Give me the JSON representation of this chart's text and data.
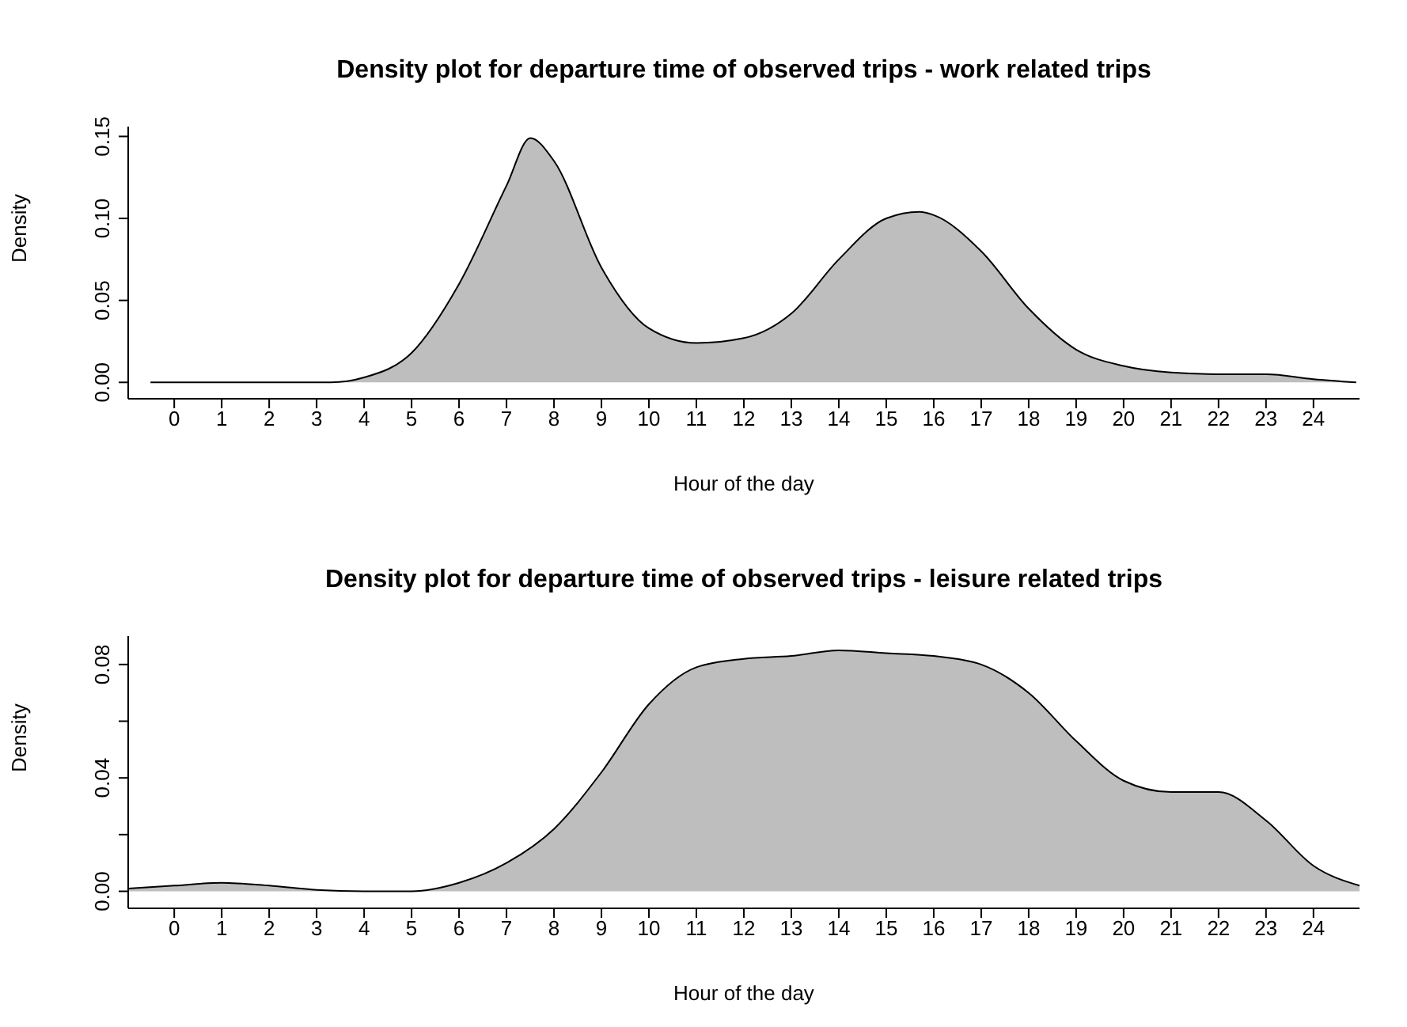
{
  "chart_data": [
    {
      "type": "area",
      "title": "Density plot for departure time of observed trips - work related trips",
      "xlabel": "Hour of the day",
      "ylabel": "Density",
      "x": [
        -0.5,
        1,
        3.3,
        4,
        5,
        6,
        7,
        7.5,
        8,
        9,
        10,
        11,
        12,
        13,
        14,
        15,
        15.7,
        16,
        17,
        18,
        19,
        20,
        21,
        22,
        23,
        24,
        24.9
      ],
      "series": [
        {
          "color": "#bebebe",
          "values": [
            0,
            0,
            0,
            0.003,
            0.018,
            0.06,
            0.12,
            0.149,
            0.135,
            0.07,
            0.033,
            0.024,
            0.027,
            0.042,
            0.075,
            0.1,
            0.104,
            0.102,
            0.08,
            0.045,
            0.02,
            0.01,
            0.006,
            0.005,
            0.005,
            0.002,
            0
          ]
        }
      ],
      "xlim": [
        -0.97,
        24.97
      ],
      "xticks": [
        0,
        1,
        2,
        3,
        4,
        5,
        6,
        7,
        8,
        9,
        10,
        11,
        12,
        13,
        14,
        15,
        16,
        17,
        18,
        19,
        20,
        21,
        22,
        23,
        24
      ],
      "ylim": [
        -0.01,
        0.156
      ],
      "yticks": [
        {
          "value": 0,
          "label": "0.00"
        },
        {
          "value": 0.05,
          "label": "0.05"
        },
        {
          "value": 0.1,
          "label": "0.10"
        },
        {
          "value": 0.15,
          "label": "0.15"
        }
      ],
      "grid": false,
      "legend": false
    },
    {
      "type": "area",
      "title": "Density plot for departure time of observed trips - leisure related trips",
      "xlabel": "Hour of the day",
      "ylabel": "Density",
      "x": [
        -0.97,
        0,
        1,
        2,
        3,
        4,
        5,
        6,
        7,
        8,
        9,
        10,
        11,
        12,
        13,
        14,
        15,
        16,
        17,
        18,
        19,
        20,
        21,
        22,
        23,
        24,
        24.97
      ],
      "series": [
        {
          "color": "#bebebe",
          "values": [
            0.001,
            0.002,
            0.003,
            0.002,
            0.0005,
            0,
            0,
            0.003,
            0.01,
            0.022,
            0.042,
            0.066,
            0.079,
            0.082,
            0.083,
            0.085,
            0.084,
            0.083,
            0.08,
            0.07,
            0.053,
            0.039,
            0.035,
            0.035,
            0.025,
            0.009,
            0.002
          ]
        }
      ],
      "xlim": [
        -0.97,
        24.97
      ],
      "xticks": [
        0,
        1,
        2,
        3,
        4,
        5,
        6,
        7,
        8,
        9,
        10,
        11,
        12,
        13,
        14,
        15,
        16,
        17,
        18,
        19,
        20,
        21,
        22,
        23,
        24
      ],
      "ylim": [
        -0.006,
        0.09
      ],
      "yticks": [
        {
          "value": 0,
          "label": "0.00"
        },
        {
          "value": 0.02,
          "label": null
        },
        {
          "value": 0.04,
          "label": "0.04"
        },
        {
          "value": 0.06,
          "label": null
        },
        {
          "value": 0.08,
          "label": "0.08"
        }
      ],
      "grid": false,
      "legend": false
    }
  ]
}
